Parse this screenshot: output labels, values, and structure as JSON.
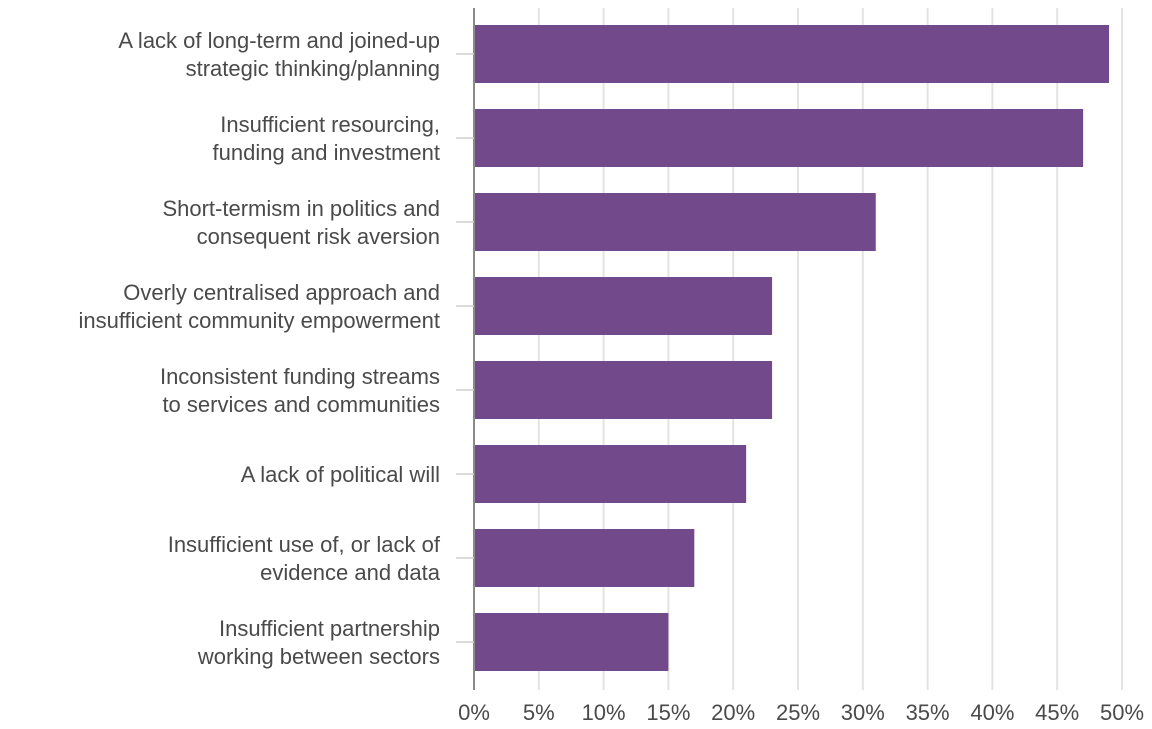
{
  "chart_data": {
    "type": "bar",
    "orientation": "horizontal",
    "categories": [
      [
        "A lack of long-term and joined-up",
        "strategic thinking/planning"
      ],
      [
        "Insufficient resourcing,",
        "funding and investment"
      ],
      [
        "Short-termism in politics and",
        "consequent risk aversion"
      ],
      [
        "Overly centralised approach and",
        "insufficient community empowerment"
      ],
      [
        "Inconsistent funding streams",
        "to services and communities"
      ],
      [
        "A lack of political will"
      ],
      [
        "Insufficient use of, or lack of",
        "evidence and data"
      ],
      [
        "Insufficient partnership",
        "working between sectors"
      ]
    ],
    "values": [
      49,
      47,
      31,
      23,
      23,
      21,
      17,
      15
    ],
    "xlim": [
      0,
      50
    ],
    "tick_values": [
      0,
      5,
      10,
      15,
      20,
      25,
      30,
      35,
      40,
      45,
      50
    ],
    "tick_labels": [
      "0%",
      "5%",
      "10%",
      "15%",
      "20%",
      "25%",
      "30%",
      "35%",
      "40%",
      "45%",
      "50%"
    ],
    "title": "",
    "xlabel": "",
    "ylabel": "",
    "grid": "vertical",
    "legend": "none",
    "colors": {
      "bar": "#724a8b",
      "grid": "#e3e3e3",
      "axis": "#8a8a8a",
      "text": "#4a4a4a"
    }
  }
}
